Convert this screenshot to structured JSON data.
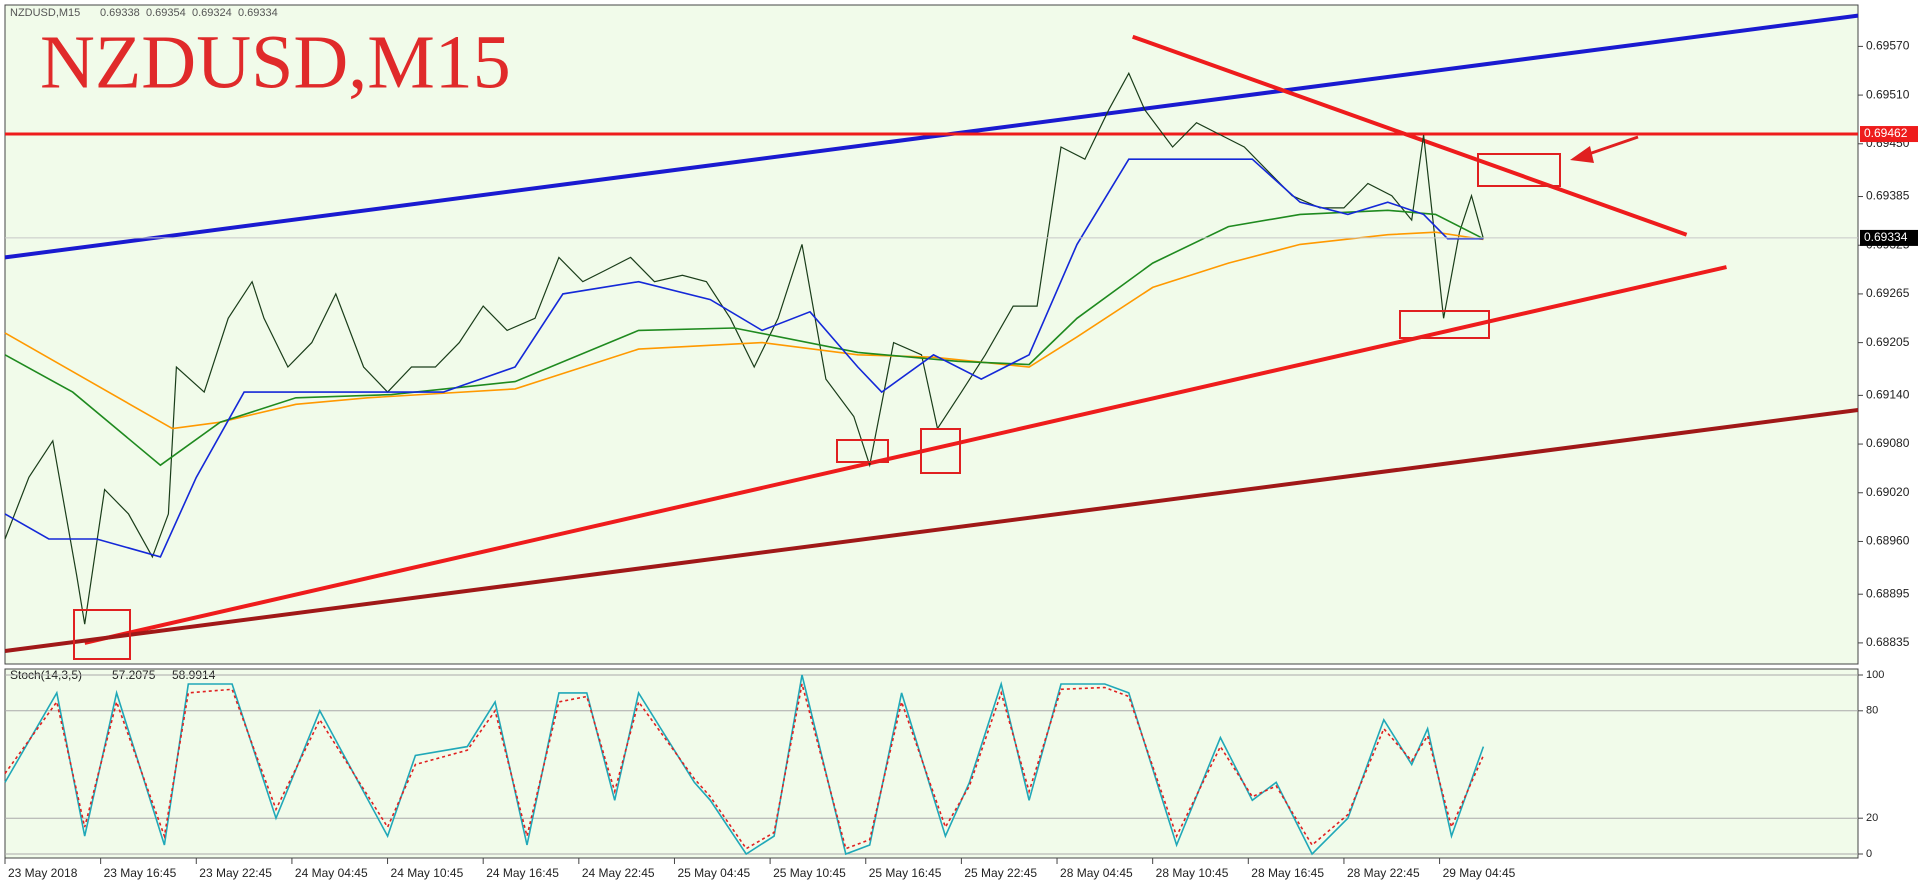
{
  "chart_data": [
    {
      "type": "line",
      "title": "NZDUSD,M15",
      "header": "NZDUSD,M15",
      "quote": [
        0.69338,
        0.69354,
        0.69324,
        0.69334
      ],
      "xlim": [
        0,
        465
      ],
      "ylim": [
        0.68809,
        0.69621
      ],
      "xticks": [
        {
          "value": 0,
          "label": "23 May 2018"
        },
        {
          "value": 24,
          "label": "23 May 16:45"
        },
        {
          "value": 48,
          "label": "23 May 22:45"
        },
        {
          "value": 72,
          "label": "24 May 04:45"
        },
        {
          "value": 96,
          "label": "24 May 10:45"
        },
        {
          "value": 120,
          "label": "24 May 16:45"
        },
        {
          "value": 144,
          "label": "24 May 22:45"
        },
        {
          "value": 168,
          "label": "25 May 04:45"
        },
        {
          "value": 192,
          "label": "25 May 10:45"
        },
        {
          "value": 216,
          "label": "25 May 16:45"
        },
        {
          "value": 240,
          "label": "25 May 22:45"
        },
        {
          "value": 264,
          "label": "28 May 04:45"
        },
        {
          "value": 288,
          "label": "28 May 10:45"
        },
        {
          "value": 312,
          "label": "28 May 16:45"
        },
        {
          "value": 336,
          "label": "28 May 22:45"
        },
        {
          "value": 360,
          "label": "29 May 04:45"
        }
      ],
      "yticks": [
        {
          "value": 0.6957,
          "label": "0.69570"
        },
        {
          "value": 0.6951,
          "label": "0.69510"
        },
        {
          "value": 0.6945,
          "label": "0.69450"
        },
        0.69385,
        0.69325,
        0.69265,
        0.69205,
        {
          "value": 0.6914,
          "label": "0.69140"
        },
        {
          "value": 0.6908,
          "label": "0.69080"
        },
        {
          "value": 0.6902,
          "label": "0.69020"
        },
        {
          "value": 0.6896,
          "label": "0.68960"
        },
        0.68895,
        0.68835
      ],
      "level": 0.69462,
      "last_price": 0.69334,
      "series": [
        {
          "color": "#1a3d1a",
          "x": [
            0,
            6,
            12,
            18,
            20,
            25,
            31,
            37,
            41,
            43,
            50,
            56,
            62,
            65,
            71,
            77,
            83,
            90,
            96,
            102,
            108,
            114,
            120,
            126,
            133,
            139,
            145,
            151,
            157,
            163,
            170,
            176,
            182,
            188,
            194,
            200,
            206,
            213,
            217,
            223,
            230,
            234,
            240,
            246,
            253,
            259,
            265,
            271,
            277,
            282,
            286,
            293,
            299,
            305,
            311,
            317,
            323,
            330,
            336,
            342,
            348,
            353,
            356,
            359,
            361,
            365,
            368,
            371
          ],
          "values": [
            0.68963,
            0.69039,
            0.69084,
            0.68918,
            0.68858,
            0.69024,
            0.68994,
            0.68941,
            0.68994,
            0.69175,
            0.69144,
            0.69235,
            0.6928,
            0.69235,
            0.69175,
            0.69205,
            0.69265,
            0.69175,
            0.69144,
            0.69175,
            0.69175,
            0.69205,
            0.6925,
            0.6922,
            0.69235,
            0.6931,
            0.6928,
            0.69295,
            0.6931,
            0.6928,
            0.69288,
            0.6928,
            0.69235,
            0.69175,
            0.69235,
            0.69326,
            0.6916,
            0.69114,
            0.69054,
            0.69205,
            0.6919,
            0.69099,
            0.69144,
            0.6919,
            0.6925,
            0.6925,
            0.69446,
            0.69431,
            0.69492,
            0.69537,
            0.69492,
            0.69446,
            0.69476,
            0.69461,
            0.69446,
            0.69416,
            0.69386,
            0.69371,
            0.69371,
            0.69401,
            0.69386,
            0.69356,
            0.69461,
            0.69326,
            0.69235,
            0.69341,
            0.69386,
            0.69333
          ]
        },
        {
          "color": "#ff9900",
          "x": [
            0,
            42,
            54,
            73,
            91,
            128,
            159,
            190,
            214,
            233,
            257,
            269,
            288,
            307,
            325,
            347,
            359,
            371
          ],
          "values": [
            0.69217,
            0.69099,
            0.69107,
            0.69129,
            0.69137,
            0.69148,
            0.69197,
            0.69205,
            0.6919,
            0.69187,
            0.69175,
            0.69212,
            0.69273,
            0.69303,
            0.69326,
            0.69338,
            0.69341,
            0.69332
          ]
        },
        {
          "color": "#1f8a1f",
          "x": [
            0,
            17,
            39,
            54,
            73,
            97,
            128,
            159,
            183,
            214,
            239,
            257,
            269,
            288,
            307,
            325,
            347,
            359,
            371
          ],
          "values": [
            0.6919,
            0.69144,
            0.69054,
            0.69107,
            0.69137,
            0.69141,
            0.69157,
            0.6922,
            0.69223,
            0.69193,
            0.69182,
            0.69178,
            0.69235,
            0.69303,
            0.69348,
            0.69363,
            0.69368,
            0.69363,
            0.69333
          ]
        },
        {
          "color": "#1428d8",
          "x": [
            0,
            11,
            23,
            39,
            48,
            60,
            73,
            91,
            110,
            128,
            140,
            159,
            177,
            190,
            202,
            214,
            220,
            233,
            245,
            257,
            269,
            282,
            294,
            313,
            325,
            337,
            347,
            356,
            362,
            371
          ],
          "values": [
            0.68994,
            0.68963,
            0.68963,
            0.68941,
            0.69039,
            0.69144,
            0.69144,
            0.69144,
            0.69144,
            0.69175,
            0.69265,
            0.6928,
            0.69258,
            0.6922,
            0.69243,
            0.69175,
            0.69144,
            0.6919,
            0.6916,
            0.6919,
            0.69326,
            0.69431,
            0.69431,
            0.69431,
            0.69378,
            0.69363,
            0.69378,
            0.69363,
            0.69333,
            0.69333
          ]
        }
      ],
      "trend_lines": [
        {
          "color": "#1a1ad0",
          "x": [
            0,
            465
          ],
          "values": [
            0.6931,
            0.69608
          ]
        },
        {
          "color": "#ee1c1c",
          "x": [
            283,
            422
          ],
          "values": [
            0.69582,
            0.69338
          ]
        },
        {
          "color": "#ee1c1c",
          "x": [
            20,
            432
          ],
          "values": [
            0.68835,
            0.69298
          ]
        },
        {
          "color": "#a01818",
          "x": [
            0,
            465
          ],
          "values": [
            0.68825,
            0.69122
          ]
        }
      ],
      "level_color": "#ee1c1c"
    },
    {
      "type": "line",
      "title": "Stoch(14,3,5)",
      "readings": [
        57.2075,
        58.9914
      ],
      "xlim": [
        0,
        465
      ],
      "ylim": [
        0,
        100
      ],
      "yticks": [
        0,
        20,
        80,
        100
      ],
      "series": [
        {
          "color": "#20a8b8",
          "x": [
            0,
            13,
            20,
            28,
            40,
            46,
            57,
            68,
            79,
            96,
            103,
            116,
            123,
            131,
            139,
            146,
            153,
            159,
            173,
            177,
            186,
            193,
            200,
            211,
            217,
            225,
            236,
            242,
            250,
            257,
            265,
            276,
            282,
            294,
            305,
            313,
            319,
            328,
            337,
            346,
            353,
            357,
            363,
            371
          ],
          "values": [
            40,
            90,
            10,
            90,
            5,
            95,
            95,
            20,
            80,
            10,
            55,
            60,
            85,
            5,
            90,
            90,
            30,
            90,
            40,
            30,
            0,
            10,
            100,
            0,
            5,
            90,
            10,
            40,
            95,
            30,
            95,
            95,
            90,
            5,
            65,
            30,
            40,
            0,
            20,
            75,
            50,
            70,
            10,
            60
          ]
        },
        {
          "color": "#e02020",
          "dashed": true,
          "x": [
            0,
            13,
            20,
            28,
            40,
            46,
            57,
            68,
            79,
            96,
            103,
            116,
            123,
            131,
            139,
            146,
            153,
            159,
            173,
            177,
            186,
            193,
            200,
            211,
            217,
            225,
            236,
            242,
            250,
            257,
            265,
            276,
            282,
            294,
            305,
            313,
            319,
            328,
            337,
            346,
            353,
            357,
            363,
            371
          ],
          "values": [
            45,
            85,
            15,
            85,
            10,
            90,
            92,
            25,
            75,
            15,
            50,
            58,
            80,
            10,
            85,
            88,
            35,
            85,
            42,
            32,
            3,
            12,
            95,
            3,
            8,
            85,
            15,
            38,
            90,
            35,
            92,
            93,
            88,
            10,
            60,
            32,
            38,
            5,
            22,
            70,
            52,
            66,
            15,
            55
          ]
        }
      ]
    }
  ]
}
